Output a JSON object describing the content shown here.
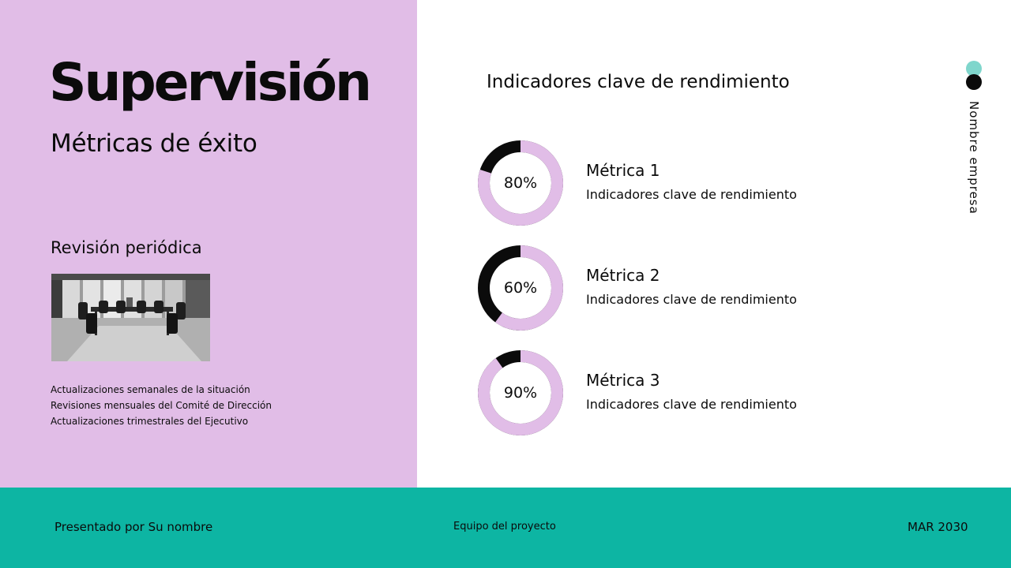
{
  "left": {
    "title": "Supervisión",
    "subtitle": "Métricas de éxito",
    "review_heading": "Revisión periódica",
    "review_items": [
      "Actualizaciones semanales de la situación",
      "Revisiones mensuales del Comité de Dirección",
      "Actualizaciones trimestrales del Ejecutivo"
    ]
  },
  "right": {
    "heading": "Indicadores clave de rendimiento",
    "metrics": [
      {
        "name": "Métrica 1",
        "description": "Indicadores clave de rendimiento",
        "label": "80%",
        "value": 80
      },
      {
        "name": "Métrica 2",
        "description": "Indicadores clave de rendimiento",
        "label": "60%",
        "value": 60
      },
      {
        "name": "Métrica 3",
        "description": "Indicadores clave de rendimiento",
        "label": "90%",
        "value": 90
      }
    ],
    "company": "Nombre empresa"
  },
  "footer": {
    "presenter": "Presentado por Su nombre",
    "team": "Equipo del proyecto",
    "date": "MAR 2030"
  },
  "colors": {
    "lilac": "#e1bde7",
    "teal": "#0db5a3",
    "mint_dot": "#7fd6cc",
    "black": "#0b0b0b"
  }
}
